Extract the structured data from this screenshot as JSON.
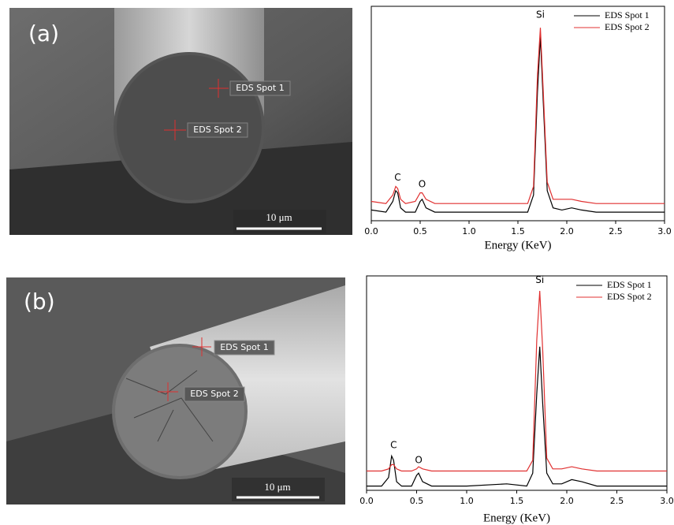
{
  "images": [
    {
      "panel_label": "(a)",
      "spot_labels": [
        "EDS Spot 1",
        "EDS Spot 2"
      ],
      "scale_bar": "10 μm"
    },
    {
      "panel_label": "(b)",
      "spot_labels": [
        "EDS Spot 1",
        "EDS Spot 2"
      ],
      "scale_bar": "10 μm"
    }
  ],
  "chart_data": [
    {
      "type": "line",
      "xlabel": "Energy (KeV)",
      "x": [
        0.0,
        0.15,
        0.22,
        0.25,
        0.27,
        0.3,
        0.35,
        0.45,
        0.5,
        0.52,
        0.56,
        0.65,
        1.0,
        1.4,
        1.6,
        1.66,
        1.7,
        1.73,
        1.76,
        1.8,
        1.86,
        1.95,
        2.05,
        2.15,
        2.3,
        2.6,
        3.0
      ],
      "series": [
        {
          "name": "EDS Spot 1",
          "color": "#000000",
          "values": [
            5,
            4,
            9,
            14,
            13,
            6,
            4,
            4,
            9,
            10,
            6,
            4,
            4,
            4,
            4,
            12,
            60,
            86,
            55,
            14,
            6,
            5,
            6,
            5,
            4,
            4,
            4
          ]
        },
        {
          "name": "EDS Spot 2",
          "color": "#e03030",
          "values": [
            9,
            8,
            12,
            16,
            15,
            10,
            8,
            9,
            13,
            13,
            10,
            8,
            8,
            8,
            8,
            16,
            68,
            90,
            60,
            18,
            10,
            10,
            10,
            9,
            8,
            8,
            8
          ]
        }
      ],
      "annotations": [
        {
          "text": "C",
          "x": 0.27,
          "y": 20
        },
        {
          "text": "O",
          "x": 0.52,
          "y": 17
        },
        {
          "text": "Si",
          "x": 1.73,
          "y": 96
        }
      ],
      "xlim": [
        0.0,
        3.0
      ],
      "xticks": [
        {
          "value": 0.0,
          "label": "0.0"
        },
        0.5,
        {
          "value": 1.0,
          "label": "1.0"
        },
        1.5,
        {
          "value": 2.0,
          "label": "2.0"
        },
        2.5,
        {
          "value": 3.0,
          "label": "3.0"
        }
      ],
      "ylim": [
        0,
        100
      ],
      "legend": "upper right"
    },
    {
      "type": "line",
      "xlabel": "Energy (KeV)",
      "x": [
        0.0,
        0.15,
        0.22,
        0.25,
        0.27,
        0.3,
        0.35,
        0.45,
        0.5,
        0.52,
        0.56,
        0.65,
        1.0,
        1.4,
        1.6,
        1.66,
        1.7,
        1.73,
        1.76,
        1.8,
        1.86,
        1.95,
        2.05,
        2.15,
        2.3,
        2.6,
        3.0
      ],
      "series": [
        {
          "name": "EDS Spot 1",
          "color": "#000000",
          "values": [
            2,
            2,
            6,
            16,
            14,
            4,
            2,
            2,
            7,
            8,
            4,
            2,
            2,
            3,
            2,
            8,
            45,
            67,
            40,
            8,
            3,
            3,
            5,
            4,
            2,
            2,
            2
          ]
        },
        {
          "name": "EDS Spot 2",
          "color": "#e03030",
          "values": [
            9,
            9,
            10,
            12,
            12,
            10,
            9,
            9,
            10,
            11,
            10,
            9,
            9,
            9,
            9,
            14,
            70,
            93,
            65,
            15,
            10,
            10,
            11,
            10,
            9,
            9,
            9
          ]
        }
      ],
      "annotations": [
        {
          "text": "C",
          "x": 0.27,
          "y": 21
        },
        {
          "text": "O",
          "x": 0.52,
          "y": 14
        },
        {
          "text": "Si",
          "x": 1.73,
          "y": 98
        }
      ],
      "xlim": [
        0.0,
        3.0
      ],
      "xticks": [
        {
          "value": 0.0,
          "label": "0.0"
        },
        0.5,
        {
          "value": 1.0,
          "label": "1.0"
        },
        1.5,
        {
          "value": 2.0,
          "label": "2.0"
        },
        2.5,
        {
          "value": 3.0,
          "label": "3.0"
        }
      ],
      "ylim": [
        0,
        100
      ],
      "legend": "upper right"
    }
  ]
}
